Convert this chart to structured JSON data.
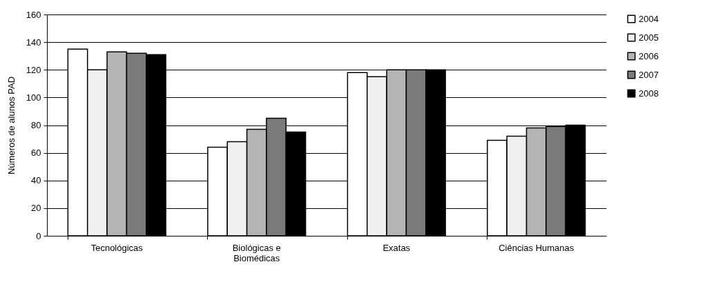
{
  "chart_data": {
    "type": "bar",
    "ylabel": "Números de alunos PAD",
    "categories": [
      "Tecnológicas",
      "Biológicas e Biomédicas",
      "Exatas",
      "Ciências Humanas"
    ],
    "series": [
      {
        "name": "2004",
        "color": "#ffffff",
        "values": [
          135,
          64,
          118,
          69
        ]
      },
      {
        "name": "2005",
        "color": "#f0f0f0",
        "values": [
          120,
          68,
          115,
          72
        ]
      },
      {
        "name": "2006",
        "color": "#b4b4b4",
        "values": [
          133,
          77,
          120,
          78
        ]
      },
      {
        "name": "2007",
        "color": "#7a7a7a",
        "values": [
          132,
          85,
          120,
          79
        ]
      },
      {
        "name": "2008",
        "color": "#000000",
        "values": [
          131,
          75,
          120,
          80
        ]
      }
    ],
    "ylim": [
      0,
      160
    ],
    "yticks": [
      0,
      20,
      40,
      60,
      80,
      100,
      120,
      140,
      160
    ],
    "grid": "y",
    "legend": "right"
  }
}
